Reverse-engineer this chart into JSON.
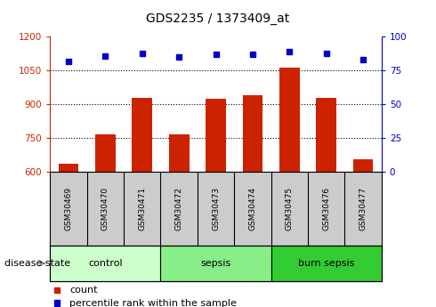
{
  "title": "GDS2235 / 1373409_at",
  "samples": [
    "GSM30469",
    "GSM30470",
    "GSM30471",
    "GSM30472",
    "GSM30473",
    "GSM30474",
    "GSM30475",
    "GSM30476",
    "GSM30477"
  ],
  "count_values": [
    635,
    768,
    930,
    768,
    925,
    940,
    1065,
    928,
    655
  ],
  "percentile_values": [
    82,
    86,
    88,
    85,
    87,
    87,
    89,
    88,
    83
  ],
  "ylim_left": [
    600,
    1200
  ],
  "ylim_right": [
    0,
    100
  ],
  "yticks_left": [
    600,
    750,
    900,
    1050,
    1200
  ],
  "yticks_right": [
    0,
    25,
    50,
    75,
    100
  ],
  "bar_color": "#cc2200",
  "dot_color": "#0000cc",
  "groups": [
    {
      "label": "control",
      "indices": [
        0,
        1,
        2
      ],
      "color": "#ccffcc"
    },
    {
      "label": "sepsis",
      "indices": [
        3,
        4,
        5
      ],
      "color": "#88ee88"
    },
    {
      "label": "burn sepsis",
      "indices": [
        6,
        7,
        8
      ],
      "color": "#33cc33"
    }
  ],
  "disease_state_label": "disease state",
  "legend_count_label": "count",
  "legend_percentile_label": "percentile rank within the sample",
  "tick_label_color_left": "#cc2200",
  "tick_label_color_right": "#0000cc",
  "bg_color_plot": "#ffffff",
  "bg_color_sample": "#cccccc",
  "title_fontsize": 10,
  "tick_fontsize": 7.5,
  "sample_fontsize": 6.5,
  "group_fontsize": 8,
  "legend_fontsize": 8
}
